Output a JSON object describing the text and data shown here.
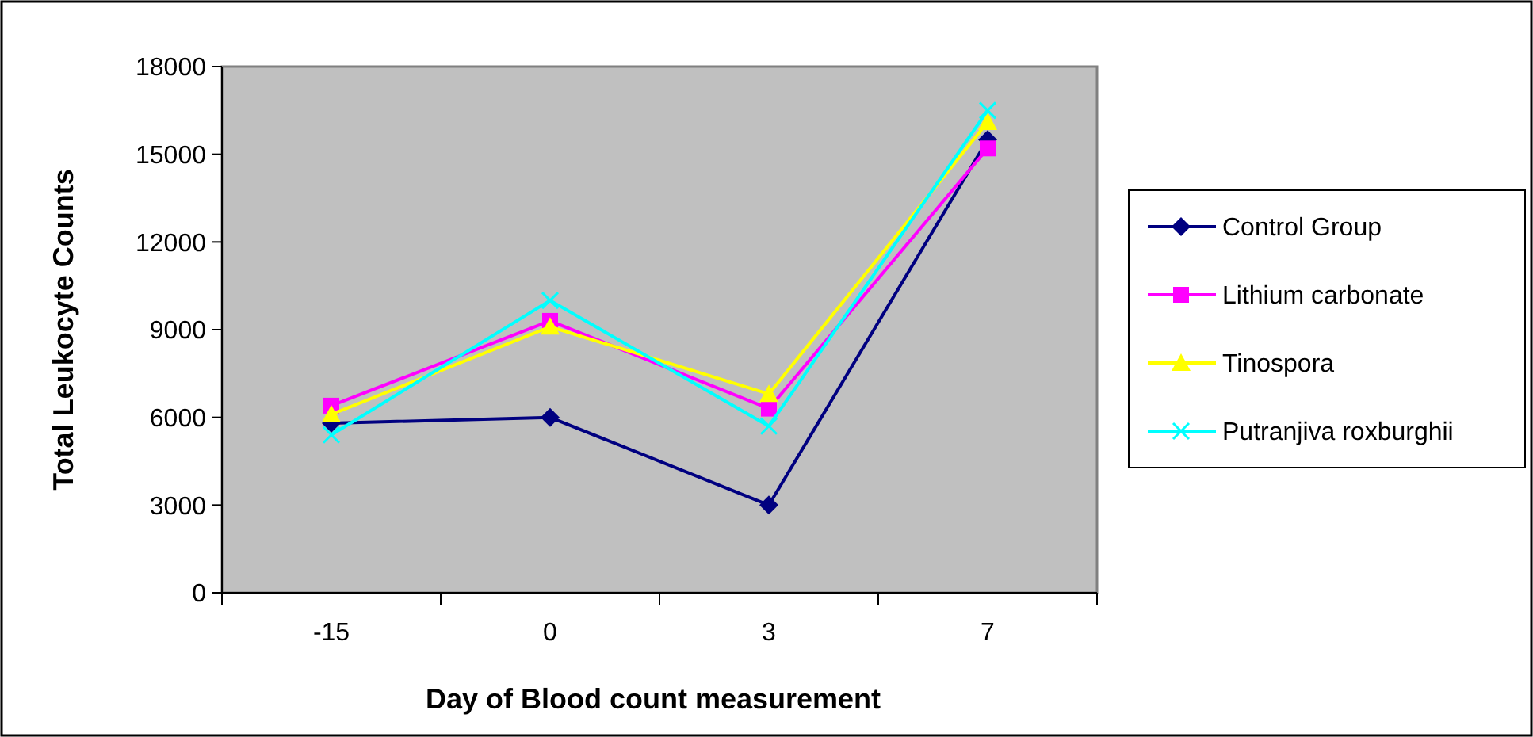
{
  "chart_data": {
    "type": "line",
    "xlabel": "Day of Blood count measurement",
    "ylabel": "Total Leukocyte Counts",
    "categories": [
      "-15",
      "0",
      "3",
      "7"
    ],
    "ylim": [
      0,
      18000
    ],
    "yticks": [
      0,
      3000,
      6000,
      9000,
      12000,
      15000,
      18000
    ],
    "grid": false,
    "legend": "right",
    "series": [
      {
        "name": "Control Group",
        "color": "#000080",
        "marker": "diamond",
        "values": [
          5800,
          6000,
          3000,
          15500
        ]
      },
      {
        "name": "Lithium carbonate",
        "color": "#ff00ff",
        "marker": "square",
        "values": [
          6400,
          9300,
          6300,
          15200
        ]
      },
      {
        "name": "Tinospora",
        "color": "#ffff00",
        "marker": "triangle",
        "values": [
          6100,
          9100,
          6800,
          16100
        ]
      },
      {
        "name": "Putranjiva roxburghii",
        "color": "#00ffff",
        "marker": "cross",
        "values": [
          5400,
          10000,
          5700,
          16500
        ]
      }
    ]
  }
}
